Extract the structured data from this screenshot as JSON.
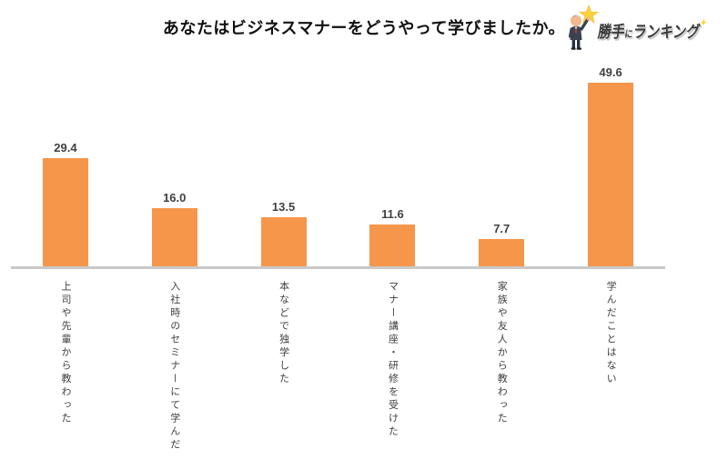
{
  "header": {
    "title": "あなたはビジネスマナーをどうやって学びましたか。"
  },
  "logo": {
    "text_part1": "勝手",
    "text_part2": "に",
    "text_part3": "ランキング",
    "sparkle": "✦",
    "star_color": "#FFD23B",
    "text_color": "#3A3A3A"
  },
  "chart_data": {
    "type": "bar",
    "title": "あなたはビジネスマナーをどうやって学びましたか。",
    "categories": [
      "上司や先輩から教わった",
      "入社時のセミナーにて学んだ",
      "本などで独学した",
      "マナー講座・研修を受けた",
      "家族や友人から教わった",
      "学んだことはない"
    ],
    "values": [
      29.4,
      16.0,
      13.5,
      11.6,
      7.7,
      49.6
    ],
    "value_labels": [
      "29.4",
      "16.0",
      "13.5",
      "11.6",
      "7.7",
      "49.6"
    ],
    "xlabel": "",
    "ylabel": "",
    "ylim": [
      0,
      55
    ],
    "grid": false,
    "legend": false,
    "category_text_direction": "vertical",
    "colors": {
      "bar": "#F6964B",
      "axis_line": "#C9C9C9",
      "value_label": "#404040",
      "category_label": "#404040",
      "title": "#111111"
    }
  }
}
